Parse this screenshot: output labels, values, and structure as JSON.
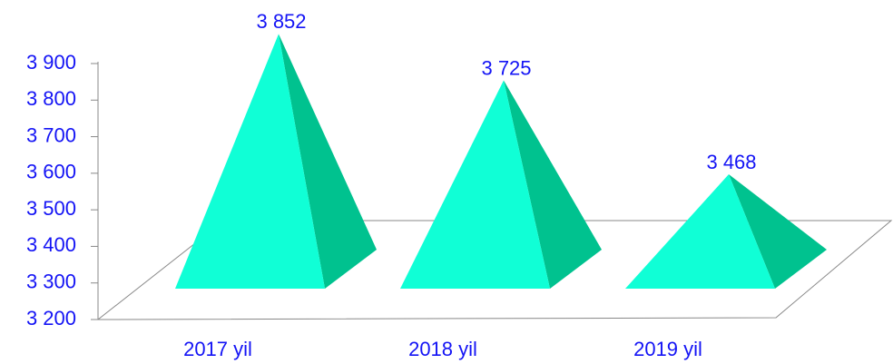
{
  "chart_data": {
    "type": "pyramid",
    "categories": [
      "2017 yil",
      "2018 yil",
      "2019 yil"
    ],
    "values": [
      3852,
      3725,
      3468
    ],
    "value_labels": [
      "3 852",
      "3 725",
      "3 468"
    ],
    "color": "#10ffd6",
    "side_color": "#00c28f",
    "ylim": [
      3200,
      3900
    ],
    "yticks": [
      {
        "value": 3200,
        "label": "3 200"
      },
      {
        "value": 3300,
        "label": "3 300"
      },
      {
        "value": 3400,
        "label": "3 400"
      },
      {
        "value": 3500,
        "label": "3 500"
      },
      {
        "value": 3600,
        "label": "3 600"
      },
      {
        "value": 3700,
        "label": "3 700"
      },
      {
        "value": 3800,
        "label": "3 800"
      },
      {
        "value": 3900,
        "label": "3 900"
      }
    ],
    "grid": false
  }
}
